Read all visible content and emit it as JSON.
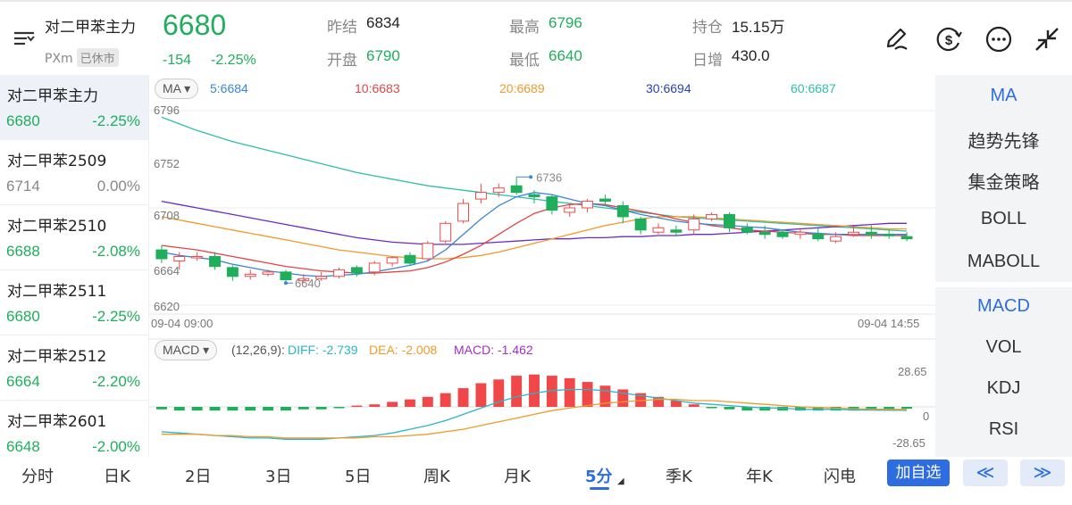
{
  "header": {
    "name": "对二甲苯主力",
    "exchange": "PXm",
    "status_badge": "已休市",
    "price": "6680",
    "change": "-154",
    "change_pct": "-2.25%",
    "stats": {
      "prev_settle_label": "昨结",
      "prev_settle": "6834",
      "open_label": "开盘",
      "open": "6790",
      "high_label": "最高",
      "high": "6796",
      "low_label": "最低",
      "low": "6640",
      "oi_label": "持仓",
      "oi": "15.15万",
      "oi_change_label": "日增",
      "oi_change": "430.0"
    },
    "icons": [
      "edit-icon",
      "currency-icon",
      "more-icon",
      "collapse-icon"
    ]
  },
  "contracts": [
    {
      "name": "对二甲苯主力",
      "price": "6680",
      "pct": "-2.25%",
      "color": "green"
    },
    {
      "name": "对二甲苯2509",
      "price": "6714",
      "pct": "0.00%",
      "color": "gray"
    },
    {
      "name": "对二甲苯2510",
      "price": "6688",
      "pct": "-2.08%",
      "color": "green"
    },
    {
      "name": "对二甲苯2511",
      "price": "6680",
      "pct": "-2.25%",
      "color": "green"
    },
    {
      "name": "对二甲苯2512",
      "price": "6664",
      "pct": "-2.20%",
      "color": "green"
    },
    {
      "name": "对二甲苯2601",
      "price": "6648",
      "pct": "-2.00%",
      "color": "green"
    }
  ],
  "ma_bar": {
    "selector": "MA",
    "items": [
      {
        "text": "5:6684",
        "color": "#3a86d4"
      },
      {
        "text": "10:6683",
        "color": "#e04545"
      },
      {
        "text": "20:6689",
        "color": "#f09a2a"
      },
      {
        "text": "30:6694",
        "color": "#2a3fb0"
      },
      {
        "text": "60:6687",
        "color": "#2dbfa8"
      }
    ]
  },
  "price_axis": [
    "6796",
    "6752",
    "6708",
    "6664",
    "6620"
  ],
  "time_axis": {
    "start": "09-04 09:00",
    "end": "09-04 14:55"
  },
  "annotations": {
    "high": "6736",
    "low": "6640"
  },
  "macd_bar": {
    "selector": "MACD",
    "params": "(12,26,9):",
    "diff": "DIFF: -2.739",
    "dea": "DEA: -2.008",
    "macd": "MACD: -1.462",
    "axis_top": "28.65",
    "axis_mid": "0",
    "axis_bottom": "-28.65"
  },
  "colors": {
    "up": "#f04848",
    "down": "#1fae5b",
    "accent": "#2d6de0"
  },
  "indicators_main": [
    "MA",
    "趋势先锋",
    "集金策略",
    "BOLL",
    "MABOLL"
  ],
  "indicators_sub": [
    "MACD",
    "VOL",
    "KDJ",
    "RSI"
  ],
  "periods": [
    "分时",
    "日K",
    "2日",
    "3日",
    "5日",
    "周K",
    "月K",
    "5分",
    "季K",
    "年K",
    "闪电"
  ],
  "selected_period": "5分",
  "add_watch": "加自选",
  "nav_prev": "≪",
  "nav_next": "≫",
  "chart_data": {
    "type": "candlestick",
    "x_range": [
      "09-04 09:00",
      "09-04 14:55"
    ],
    "ylim": [
      6620,
      6796
    ],
    "candles": [
      {
        "o": 6670,
        "c": 6662,
        "h": 6674,
        "l": 6658
      },
      {
        "o": 6660,
        "c": 6664,
        "h": 6668,
        "l": 6652
      },
      {
        "o": 6664,
        "c": 6664,
        "h": 6668,
        "l": 6660
      },
      {
        "o": 6664,
        "c": 6655,
        "h": 6668,
        "l": 6652
      },
      {
        "o": 6654,
        "c": 6646,
        "h": 6656,
        "l": 6642
      },
      {
        "o": 6646,
        "c": 6648,
        "h": 6652,
        "l": 6643
      },
      {
        "o": 6648,
        "c": 6650,
        "h": 6652,
        "l": 6646
      },
      {
        "o": 6650,
        "c": 6643,
        "h": 6652,
        "l": 6640
      },
      {
        "o": 6642,
        "c": 6644,
        "h": 6648,
        "l": 6640
      },
      {
        "o": 6644,
        "c": 6646,
        "h": 6650,
        "l": 6642
      },
      {
        "o": 6646,
        "c": 6652,
        "h": 6654,
        "l": 6644
      },
      {
        "o": 6654,
        "c": 6649,
        "h": 6656,
        "l": 6646
      },
      {
        "o": 6650,
        "c": 6658,
        "h": 6660,
        "l": 6647
      },
      {
        "o": 6658,
        "c": 6663,
        "h": 6664,
        "l": 6655
      },
      {
        "o": 6665,
        "c": 6658,
        "h": 6668,
        "l": 6656
      },
      {
        "o": 6662,
        "c": 6676,
        "h": 6678,
        "l": 6660
      },
      {
        "o": 6678,
        "c": 6694,
        "h": 6696,
        "l": 6676
      },
      {
        "o": 6696,
        "c": 6712,
        "h": 6716,
        "l": 6694
      },
      {
        "o": 6716,
        "c": 6722,
        "h": 6730,
        "l": 6712
      },
      {
        "o": 6722,
        "c": 6726,
        "h": 6730,
        "l": 6718
      },
      {
        "o": 6728,
        "c": 6722,
        "h": 6736,
        "l": 6720
      },
      {
        "o": 6720,
        "c": 6718,
        "h": 6724,
        "l": 6712
      },
      {
        "o": 6718,
        "c": 6706,
        "h": 6720,
        "l": 6702
      },
      {
        "o": 6704,
        "c": 6708,
        "h": 6712,
        "l": 6700
      },
      {
        "o": 6708,
        "c": 6714,
        "h": 6716,
        "l": 6704
      },
      {
        "o": 6716,
        "c": 6714,
        "h": 6720,
        "l": 6710
      },
      {
        "o": 6710,
        "c": 6700,
        "h": 6714,
        "l": 6694
      },
      {
        "o": 6698,
        "c": 6688,
        "h": 6700,
        "l": 6684
      },
      {
        "o": 6686,
        "c": 6690,
        "h": 6694,
        "l": 6684
      },
      {
        "o": 6688,
        "c": 6686,
        "h": 6692,
        "l": 6682
      },
      {
        "o": 6688,
        "c": 6698,
        "h": 6702,
        "l": 6684
      },
      {
        "o": 6698,
        "c": 6702,
        "h": 6704,
        "l": 6696
      },
      {
        "o": 6702,
        "c": 6690,
        "h": 6704,
        "l": 6686
      },
      {
        "o": 6690,
        "c": 6686,
        "h": 6694,
        "l": 6684
      },
      {
        "o": 6686,
        "c": 6684,
        "h": 6692,
        "l": 6680
      },
      {
        "o": 6686,
        "c": 6682,
        "h": 6688,
        "l": 6680
      },
      {
        "o": 6684,
        "c": 6686,
        "h": 6690,
        "l": 6680
      },
      {
        "o": 6684,
        "c": 6680,
        "h": 6690,
        "l": 6678
      },
      {
        "o": 6678,
        "c": 6682,
        "h": 6686,
        "l": 6676
      },
      {
        "o": 6684,
        "c": 6686,
        "h": 6692,
        "l": 6682
      },
      {
        "o": 6686,
        "c": 6684,
        "h": 6692,
        "l": 6680
      },
      {
        "o": 6684,
        "c": 6683,
        "h": 6688,
        "l": 6680
      },
      {
        "o": 6682,
        "c": 6680,
        "h": 6686,
        "l": 6678
      }
    ],
    "ma5": [
      6668,
      6665,
      6663,
      6661,
      6657,
      6654,
      6651,
      6649,
      6647,
      6646,
      6647,
      6648,
      6650,
      6653,
      6656,
      6660,
      6670,
      6684,
      6698,
      6710,
      6718,
      6722,
      6720,
      6716,
      6712,
      6710,
      6706,
      6702,
      6699,
      6696,
      6694,
      6693,
      6692,
      6691,
      6690,
      6688,
      6686,
      6685,
      6684,
      6684,
      6684,
      6684,
      6684
    ],
    "ma10": [
      6674,
      6672,
      6670,
      6667,
      6664,
      6661,
      6658,
      6655,
      6653,
      6651,
      6650,
      6649,
      6649,
      6650,
      6651,
      6654,
      6659,
      6666,
      6674,
      6684,
      6694,
      6703,
      6708,
      6711,
      6712,
      6711,
      6708,
      6705,
      6702,
      6698,
      6695,
      6692,
      6690,
      6688,
      6687,
      6686,
      6685,
      6684,
      6684,
      6683,
      6683,
      6683,
      6683
    ],
    "ma20": [
      6700,
      6697,
      6694,
      6691,
      6688,
      6685,
      6682,
      6679,
      6676,
      6673,
      6670,
      6668,
      6666,
      6664,
      6663,
      6662,
      6662,
      6663,
      6665,
      6668,
      6672,
      6676,
      6680,
      6684,
      6688,
      6692,
      6695,
      6698,
      6700,
      6700,
      6700,
      6699,
      6698,
      6697,
      6696,
      6695,
      6694,
      6693,
      6692,
      6691,
      6690,
      6689,
      6689
    ],
    "ma30": [
      6714,
      6711,
      6708,
      6705,
      6702,
      6699,
      6696,
      6693,
      6690,
      6687,
      6684,
      6681,
      6679,
      6677,
      6676,
      6675,
      6675,
      6675,
      6676,
      6677,
      6678,
      6679,
      6680,
      6680,
      6681,
      6681,
      6682,
      6682,
      6683,
      6683,
      6684,
      6684,
      6685,
      6686,
      6687,
      6688,
      6689,
      6690,
      6691,
      6692,
      6693,
      6694,
      6694
    ],
    "ma60": [
      6790,
      6784,
      6778,
      6773,
      6768,
      6764,
      6760,
      6756,
      6752,
      6748,
      6744,
      6740,
      6737,
      6734,
      6731,
      6728,
      6726,
      6724,
      6722,
      6720,
      6718,
      6716,
      6714,
      6712,
      6710,
      6708,
      6706,
      6704,
      6702,
      6700,
      6699,
      6698,
      6697,
      6696,
      6695,
      6694,
      6693,
      6692,
      6691,
      6690,
      6689,
      6688,
      6687
    ],
    "macd_ylim": [
      -28.65,
      28.65
    ],
    "macd_hist": [
      -2,
      -3,
      -3,
      -3,
      -3,
      -3,
      -3,
      -3,
      -2,
      -2,
      -1,
      1,
      2,
      4,
      6,
      8,
      11,
      15,
      19,
      22,
      25,
      26,
      25,
      23,
      20,
      17,
      14,
      11,
      8,
      5,
      2,
      -1,
      -2,
      -3,
      -3,
      -3,
      -3,
      -3,
      -3,
      -3,
      -2,
      -2,
      -1.5
    ],
    "diff": [
      -20,
      -21,
      -22,
      -23,
      -24,
      -25,
      -25,
      -26,
      -26,
      -26,
      -25,
      -24,
      -23,
      -21,
      -18,
      -15,
      -11,
      -6,
      -1,
      4,
      8,
      11,
      13,
      14,
      14,
      13,
      11,
      9,
      7,
      5,
      3,
      2,
      1,
      0,
      -1,
      -1,
      -2,
      -2,
      -2,
      -2.5,
      -2.6,
      -2.7,
      -2.7
    ],
    "dea": [
      -22,
      -22,
      -22,
      -23,
      -23,
      -24,
      -24,
      -25,
      -25,
      -25,
      -25,
      -25,
      -24,
      -24,
      -23,
      -22,
      -20,
      -18,
      -15,
      -12,
      -9,
      -6,
      -3,
      -1,
      1,
      3,
      4,
      5,
      6,
      6,
      5,
      5,
      4,
      3,
      2,
      1,
      0,
      -0.5,
      -1,
      -1.5,
      -1.8,
      -2,
      -2
    ]
  }
}
